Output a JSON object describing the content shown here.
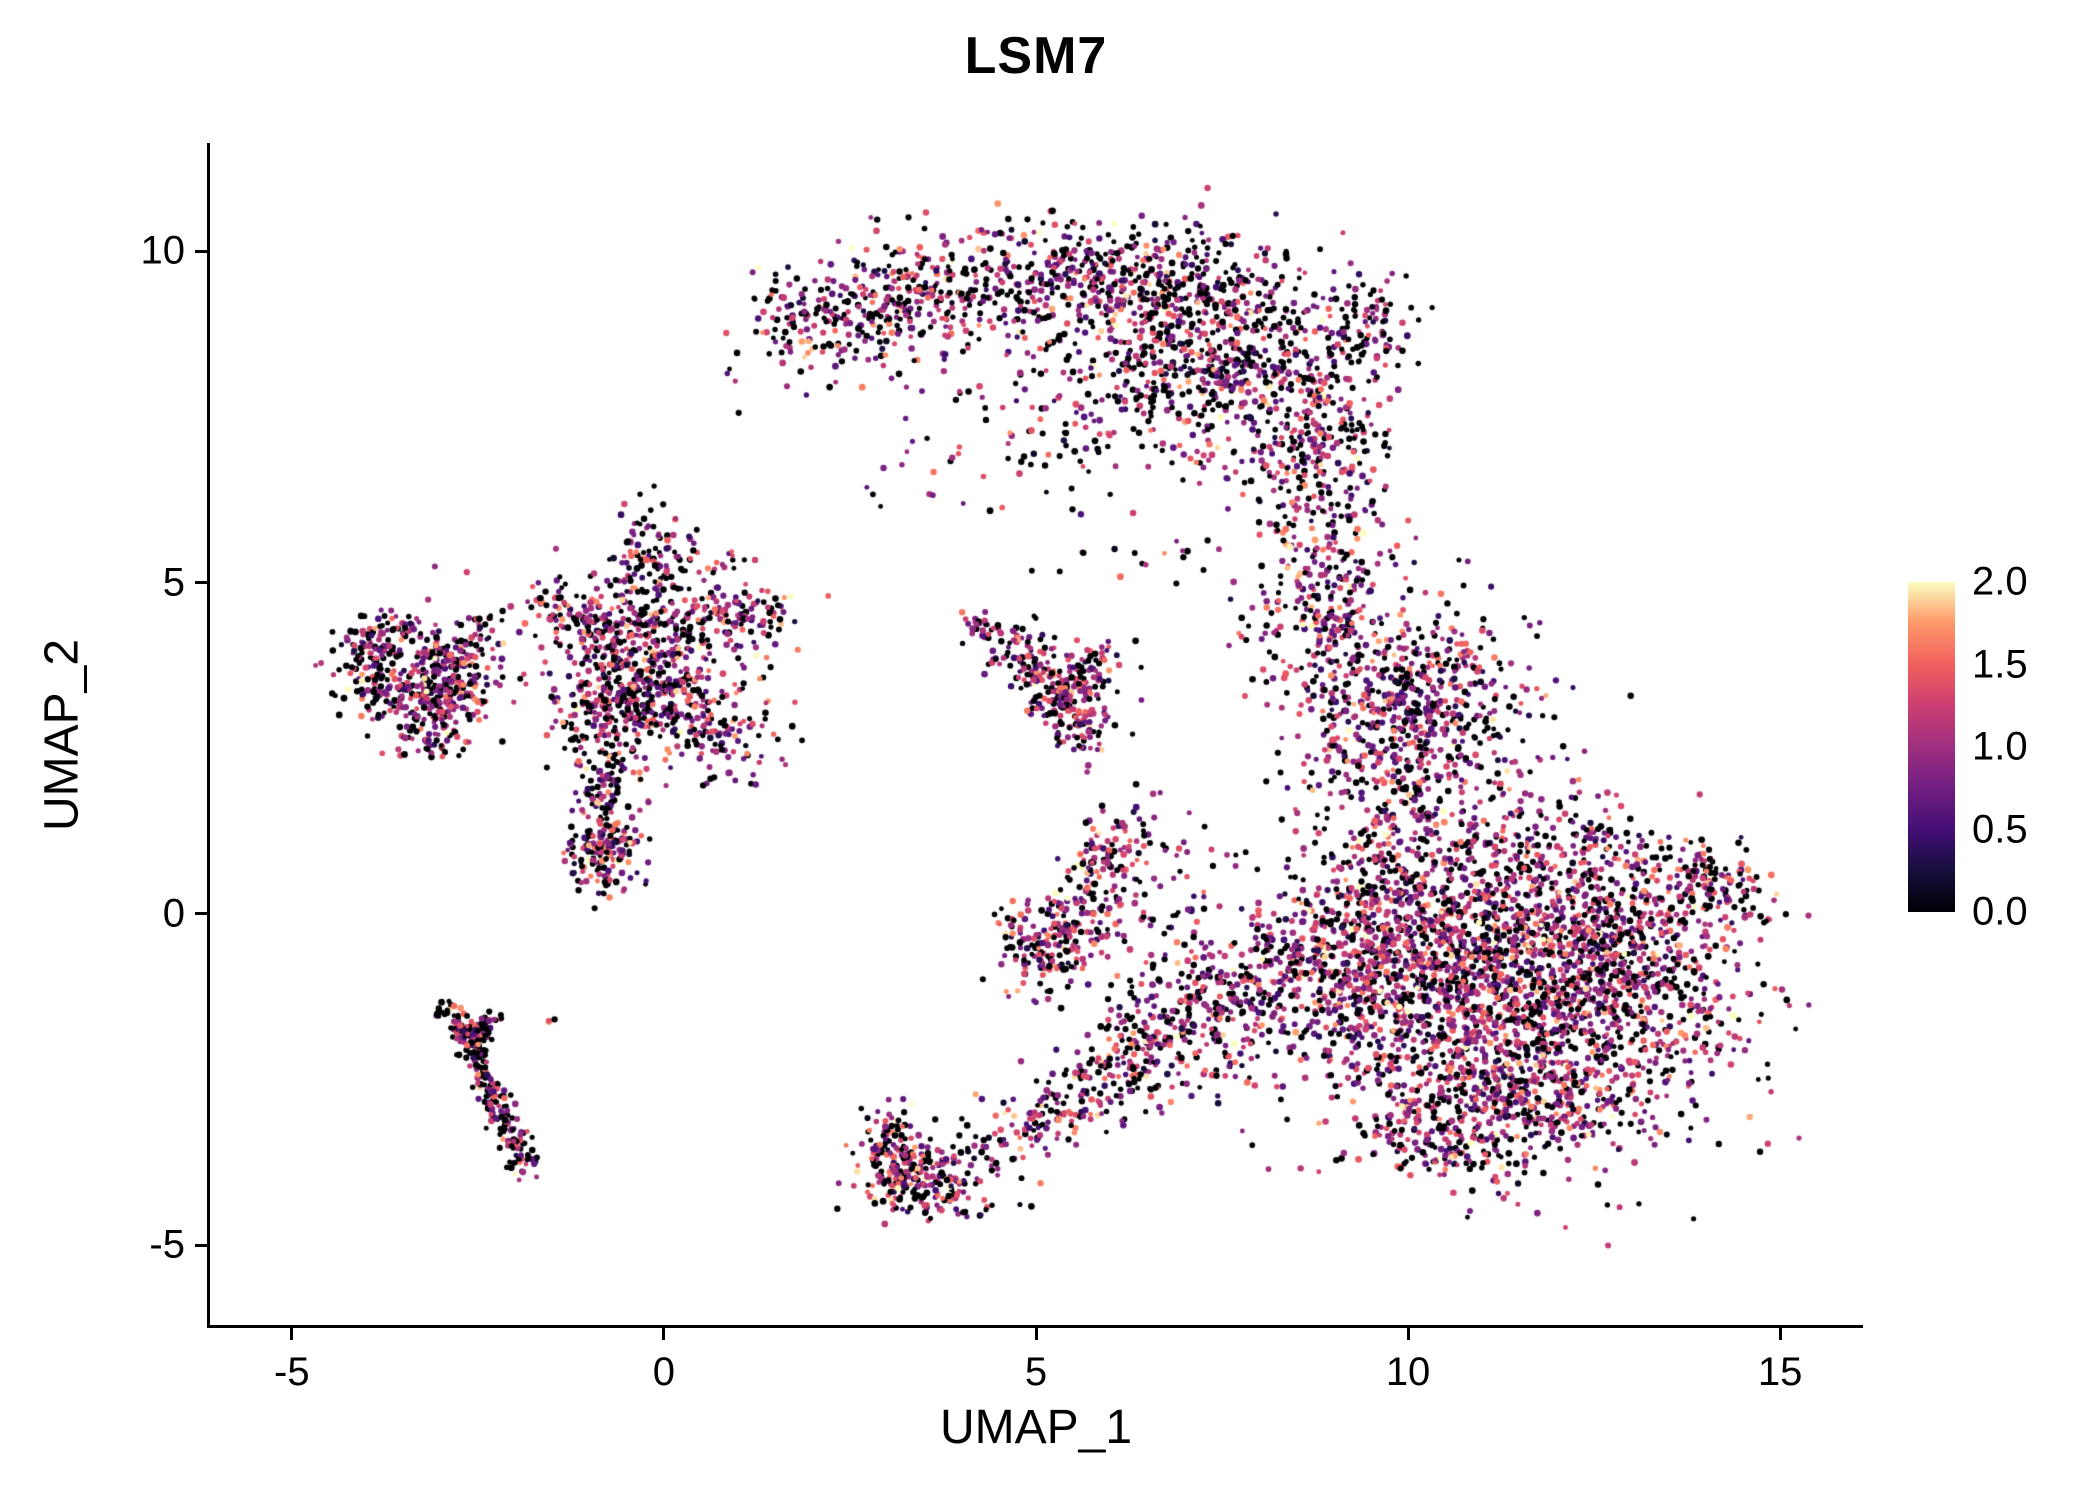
{
  "chart_data": {
    "type": "scatter",
    "title": "LSM7",
    "xlabel": "UMAP_1",
    "ylabel": "UMAP_2",
    "xlim": [
      -6.1,
      16.1
    ],
    "ylim": [
      -6.2,
      11.6
    ],
    "grid": false,
    "legend_position": "right",
    "background": "#ffffff",
    "axis_color": "#000000",
    "x_ticks": {
      "values": [
        -5,
        0,
        5,
        10,
        15
      ],
      "labels": [
        "-5",
        "0",
        "5",
        "10",
        "15"
      ]
    },
    "y_ticks": {
      "values": [
        -5,
        0,
        5,
        10
      ],
      "labels": [
        "-5",
        "0",
        "5",
        "10"
      ]
    },
    "colorbar": {
      "vmin": 0,
      "vmax": 2,
      "ticks": {
        "values": [
          0,
          0.5,
          1,
          1.5,
          2
        ],
        "labels": [
          "0.0",
          "0.5",
          "1.0",
          "1.5",
          "2.0"
        ]
      }
    },
    "colormap": {
      "name": "magma",
      "stops": [
        [
          0.0,
          "#000004"
        ],
        [
          0.13,
          "#180f3e"
        ],
        [
          0.25,
          "#440f76"
        ],
        [
          0.38,
          "#721f81"
        ],
        [
          0.5,
          "#9e2f7f"
        ],
        [
          0.63,
          "#cd4071"
        ],
        [
          0.75,
          "#f1605d"
        ],
        [
          0.88,
          "#fd9b6b"
        ],
        [
          1.0,
          "#fcfdbf"
        ]
      ]
    },
    "point_radius_px": [
      2.4,
      3.4
    ],
    "seed": 42,
    "value_model": {
      "default_p0": 0.33,
      "mean": 1.05,
      "sd": 0.42,
      "min": 0.05
    },
    "clusters": [
      {
        "name": "top-arc-crown",
        "kind": "blob",
        "cx": 5.2,
        "cy": 9.5,
        "sx": 1.3,
        "sy": 0.45,
        "n": 420,
        "p0": 0.38
      },
      {
        "name": "top-arc-dense",
        "kind": "blob",
        "cx": 7.5,
        "cy": 8.4,
        "sx": 0.95,
        "sy": 0.75,
        "n": 650,
        "p0": 0.38
      },
      {
        "name": "top-arc-right-slope",
        "kind": "blob",
        "cx": 8.75,
        "cy": 7.0,
        "sx": 0.5,
        "sy": 0.75,
        "n": 260,
        "p0": 0.35
      },
      {
        "name": "top-arc-left-tail",
        "kind": "band",
        "pts": [
          [
            1.35,
            8.7
          ],
          [
            2.6,
            9.15
          ],
          [
            3.8,
            9.55
          ]
        ],
        "w": 0.35,
        "n": 200,
        "p0": 0.4
      },
      {
        "name": "top-arc-left-halo",
        "kind": "blob",
        "cx": 2.6,
        "cy": 8.9,
        "sx": 0.85,
        "sy": 0.5,
        "n": 90,
        "p0": 0.4
      },
      {
        "name": "under-arc-sparse",
        "kind": "blob",
        "cx": 5.3,
        "cy": 7.7,
        "sx": 1.1,
        "sy": 0.75,
        "n": 130,
        "p0": 0.35
      },
      {
        "name": "arc-right-protrusion",
        "kind": "blob",
        "cx": 9.5,
        "cy": 8.95,
        "sx": 0.28,
        "sy": 0.4,
        "n": 70,
        "p0": 0.35
      },
      {
        "name": "arc-top-ridge",
        "kind": "blob",
        "cx": 6.7,
        "cy": 9.6,
        "sx": 0.85,
        "sy": 0.4,
        "n": 150,
        "p0": 0.38
      },
      {
        "name": "neck-band",
        "kind": "band",
        "pts": [
          [
            9.25,
            5.7
          ],
          [
            8.95,
            4.6
          ],
          [
            9.1,
            3.7
          ]
        ],
        "w": 0.35,
        "n": 150
      },
      {
        "name": "neck-side",
        "kind": "blob",
        "cx": 8.4,
        "cy": 4.9,
        "sx": 0.35,
        "sy": 0.45,
        "n": 50
      },
      {
        "name": "right-mid-core",
        "kind": "blob",
        "cx": 9.7,
        "cy": 2.9,
        "sx": 0.7,
        "sy": 1.0,
        "n": 520,
        "p0": 0.32
      },
      {
        "name": "right-mid-upper",
        "kind": "blob",
        "cx": 10.6,
        "cy": 3.5,
        "sx": 0.5,
        "sy": 0.65,
        "n": 140,
        "p0": 0.32
      },
      {
        "name": "right-mid-halo",
        "kind": "blob",
        "cx": 11.2,
        "cy": 2.2,
        "sx": 0.65,
        "sy": 0.85,
        "n": 90,
        "p0": 0.32
      },
      {
        "name": "big-blob-core",
        "kind": "blob",
        "cx": 11.2,
        "cy": -1.4,
        "sx": 1.4,
        "sy": 1.05,
        "n": 1500,
        "p0": 0.3
      },
      {
        "name": "big-blob-right",
        "kind": "blob",
        "cx": 12.7,
        "cy": -0.5,
        "sx": 0.95,
        "sy": 0.75,
        "n": 650,
        "p0": 0.3
      },
      {
        "name": "big-blob-left",
        "kind": "blob",
        "cx": 10.0,
        "cy": -0.3,
        "sx": 0.85,
        "sy": 0.75,
        "n": 480,
        "p0": 0.3
      },
      {
        "name": "big-blob-bottom",
        "kind": "blob",
        "cx": 11.7,
        "cy": -2.8,
        "sx": 0.9,
        "sy": 0.45,
        "n": 280,
        "p0": 0.3
      },
      {
        "name": "big-blob-right-tip",
        "kind": "band",
        "pts": [
          [
            13.7,
            0.7
          ],
          [
            14.45,
            0.35
          ]
        ],
        "w": 0.28,
        "n": 110,
        "p0": 0.3
      },
      {
        "name": "big-blob-top-edge",
        "kind": "band",
        "pts": [
          [
            9.2,
            0.75
          ],
          [
            11.0,
            1.0
          ],
          [
            12.9,
            0.95
          ]
        ],
        "w": 0.35,
        "n": 240,
        "p0": 0.3
      },
      {
        "name": "big-blob-bottom-tail",
        "kind": "band",
        "pts": [
          [
            9.7,
            -3.1
          ],
          [
            11.2,
            -3.85
          ]
        ],
        "w": 0.3,
        "n": 130,
        "p0": 0.3
      },
      {
        "name": "big-blob-left-edge",
        "kind": "blob",
        "cx": 9.0,
        "cy": -0.9,
        "sx": 0.5,
        "sy": 0.9,
        "n": 200,
        "p0": 0.3
      },
      {
        "name": "connector-band",
        "kind": "band",
        "pts": [
          [
            8.5,
            -0.3
          ],
          [
            7.6,
            -1.3
          ],
          [
            6.6,
            -2.1
          ],
          [
            5.4,
            -2.9
          ],
          [
            4.3,
            -3.6
          ],
          [
            3.45,
            -4.05
          ]
        ],
        "w": 0.3,
        "n": 420
      },
      {
        "name": "bottom-left-knot",
        "kind": "blob",
        "cx": 3.3,
        "cy": -3.95,
        "sx": 0.33,
        "sy": 0.3,
        "n": 170,
        "p0": 0.3,
        "mean": 1.2
      },
      {
        "name": "bottom-left-hook",
        "kind": "blob",
        "cx": 3.0,
        "cy": -3.5,
        "sx": 0.22,
        "sy": 0.28,
        "n": 70,
        "p0": 0.3
      },
      {
        "name": "mid-knot-band",
        "kind": "band",
        "pts": [
          [
            5.0,
            -0.95
          ],
          [
            5.5,
            -0.1
          ],
          [
            5.65,
            0.4
          ]
        ],
        "w": 0.3,
        "n": 200,
        "p0": 0.32
      },
      {
        "name": "mid-knot-arm",
        "kind": "band",
        "pts": [
          [
            5.8,
            0.6
          ],
          [
            6.35,
            1.45
          ]
        ],
        "w": 0.25,
        "n": 80,
        "p0": 0.32
      },
      {
        "name": "mid-sparse-right",
        "kind": "blob",
        "cx": 6.8,
        "cy": 0.3,
        "sx": 0.55,
        "sy": 0.7,
        "n": 80,
        "p0": 0.35
      },
      {
        "name": "mid-sparse-lower",
        "kind": "blob",
        "cx": 7.5,
        "cy": -1.4,
        "sx": 0.7,
        "sy": 0.7,
        "n": 110,
        "p0": 0.35
      },
      {
        "name": "mid-sparse-lower2",
        "kind": "blob",
        "cx": 6.4,
        "cy": -2.0,
        "sx": 0.45,
        "sy": 0.5,
        "n": 90
      },
      {
        "name": "mid-small-clump",
        "kind": "blob",
        "cx": 4.75,
        "cy": -0.2,
        "sx": 0.2,
        "sy": 0.25,
        "n": 30
      },
      {
        "name": "small-v-main",
        "kind": "band",
        "pts": [
          [
            4.55,
            4.15
          ],
          [
            5.1,
            3.55
          ],
          [
            5.55,
            2.95
          ],
          [
            5.8,
            2.5
          ]
        ],
        "w": 0.2,
        "n": 190
      },
      {
        "name": "small-v-branch",
        "kind": "band",
        "pts": [
          [
            5.35,
            3.25
          ],
          [
            5.95,
            3.95
          ]
        ],
        "w": 0.16,
        "n": 70
      },
      {
        "name": "small-v-tip",
        "kind": "blob",
        "cx": 4.35,
        "cy": 4.35,
        "sx": 0.16,
        "sy": 0.14,
        "n": 25
      },
      {
        "name": "small-v-halo",
        "kind": "blob",
        "cx": 5.3,
        "cy": 3.4,
        "sx": 0.45,
        "sy": 0.45,
        "n": 55,
        "p0": 0.35
      },
      {
        "name": "star-core",
        "kind": "blob",
        "cx": -0.35,
        "cy": 3.3,
        "sx": 0.55,
        "sy": 0.5,
        "n": 420
      },
      {
        "name": "star-arm-up",
        "kind": "band",
        "pts": [
          [
            -0.45,
            4.0
          ],
          [
            -0.2,
            5.0
          ],
          [
            -0.15,
            5.85
          ]
        ],
        "w": 0.28,
        "n": 180
      },
      {
        "name": "star-arm-right",
        "kind": "band",
        "pts": [
          [
            0.2,
            4.35
          ],
          [
            1.0,
            4.5
          ],
          [
            1.65,
            4.5
          ]
        ],
        "w": 0.24,
        "n": 130
      },
      {
        "name": "star-arm-left",
        "kind": "band",
        "pts": [
          [
            -0.8,
            4.25
          ],
          [
            -1.6,
            4.6
          ]
        ],
        "w": 0.24,
        "n": 90
      },
      {
        "name": "star-arm-lower-right",
        "kind": "blob",
        "cx": 0.9,
        "cy": 2.7,
        "sx": 0.42,
        "sy": 0.35,
        "n": 70,
        "p0": 0.35
      },
      {
        "name": "star-tail-down",
        "kind": "band",
        "pts": [
          [
            -0.8,
            2.5
          ],
          [
            -0.78,
            1.5
          ],
          [
            -0.88,
            0.7
          ]
        ],
        "w": 0.22,
        "n": 150
      },
      {
        "name": "star-tail-knot",
        "kind": "blob",
        "cx": -0.82,
        "cy": 0.9,
        "sx": 0.24,
        "sy": 0.3,
        "n": 100,
        "p0": 0.3
      },
      {
        "name": "star-halo",
        "kind": "blob",
        "cx": -0.2,
        "cy": 3.9,
        "sx": 1.0,
        "sy": 0.9,
        "n": 140,
        "p0": 0.35
      },
      {
        "name": "star-upper-sparse",
        "kind": "blob",
        "cx": 0.5,
        "cy": 5.4,
        "sx": 0.4,
        "sy": 0.3,
        "n": 25,
        "p0": 0.35
      },
      {
        "name": "far-left-knot",
        "kind": "blob",
        "cx": -3.1,
        "cy": 3.3,
        "sx": 0.33,
        "sy": 0.33,
        "n": 240,
        "p0": 0.35
      },
      {
        "name": "far-left-streak",
        "kind": "band",
        "pts": [
          [
            -4.15,
            3.8
          ],
          [
            -3.5,
            4.3
          ]
        ],
        "w": 0.22,
        "n": 110,
        "p0": 0.38
      },
      {
        "name": "far-left-halo",
        "kind": "blob",
        "cx": -3.3,
        "cy": 3.7,
        "sx": 0.55,
        "sy": 0.5,
        "n": 110,
        "p0": 0.35
      },
      {
        "name": "far-left-arm",
        "kind": "band",
        "pts": [
          [
            -2.85,
            3.65
          ],
          [
            -2.35,
            4.35
          ]
        ],
        "w": 0.18,
        "n": 60,
        "p0": 0.35
      },
      {
        "name": "far-left-bottom-dots",
        "kind": "blob",
        "cx": -3.1,
        "cy": 2.6,
        "sx": 0.3,
        "sy": 0.14,
        "n": 35,
        "p0": 0.35
      },
      {
        "name": "far-left-tip",
        "kind": "blob",
        "cx": -4.05,
        "cy": 3.35,
        "sx": 0.15,
        "sy": 0.2,
        "n": 25,
        "p0": 0.4
      },
      {
        "name": "streak-main",
        "kind": "band",
        "pts": [
          [
            -2.72,
            -1.5
          ],
          [
            -2.5,
            -2.2
          ],
          [
            -2.25,
            -2.85
          ],
          [
            -2.0,
            -3.45
          ],
          [
            -1.85,
            -3.9
          ]
        ],
        "w": 0.11,
        "n": 210,
        "p0": 0.5
      },
      {
        "name": "streak-fork-left",
        "kind": "band",
        "pts": [
          [
            -2.95,
            -1.45
          ],
          [
            -2.62,
            -1.85
          ]
        ],
        "w": 0.09,
        "n": 45,
        "p0": 0.5
      },
      {
        "name": "streak-fork-right",
        "kind": "band",
        "pts": [
          [
            -2.3,
            -1.55
          ],
          [
            -2.55,
            -1.95
          ]
        ],
        "w": 0.09,
        "n": 45,
        "p0": 0.5
      },
      {
        "name": "streak-isolated-dot",
        "kind": "blob",
        "cx": -1.52,
        "cy": -1.55,
        "sx": 0.05,
        "sy": 0.05,
        "n": 3,
        "p0": 0.2
      },
      {
        "name": "sparse-between-1",
        "kind": "blob",
        "cx": 7.0,
        "cy": 5.6,
        "sx": 0.8,
        "sy": 0.55,
        "n": 22,
        "p0": 0.35
      },
      {
        "name": "sparse-between-2",
        "kind": "blob",
        "cx": 8.1,
        "cy": 4.6,
        "sx": 0.5,
        "sy": 0.6,
        "n": 20,
        "p0": 0.35
      },
      {
        "name": "sparse-mid-upper",
        "kind": "blob",
        "cx": 3.1,
        "cy": 6.6,
        "sx": 0.5,
        "sy": 0.5,
        "n": 6,
        "p0": 0.35
      },
      {
        "name": "bottom-edge-sparse",
        "kind": "blob",
        "cx": 4.0,
        "cy": -4.35,
        "sx": 0.5,
        "sy": 0.2,
        "n": 30,
        "p0": 0.3
      }
    ]
  }
}
